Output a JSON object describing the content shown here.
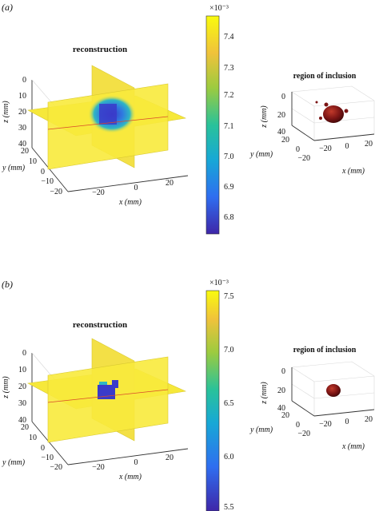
{
  "panels": [
    {
      "label": "(a)",
      "reconstruction": {
        "title": "reconstruction",
        "z_label": "z (mm)",
        "y_label": "y (mm)",
        "x_label": "x (mm)",
        "z_ticks": [
          "0",
          "10",
          "20",
          "30",
          "40"
        ],
        "y_ticks": [
          "20",
          "10",
          "0",
          "−10",
          "−20"
        ],
        "x_ticks": [
          "−20",
          "0",
          "20"
        ]
      },
      "colorbar": {
        "exponent": "×10⁻³",
        "ticks": [
          "7.4",
          "7.3",
          "7.2",
          "7.1",
          "7.0",
          "6.9",
          "6.8"
        ],
        "range": [
          6.75,
          7.45
        ]
      },
      "inclusion": {
        "title": "region of inclusion",
        "z_label": "z (mm)",
        "y_label": "y (mm)",
        "x_label": "x (mm)",
        "z_ticks": [
          "0",
          "20",
          "40"
        ],
        "y_ticks": [
          "20",
          "0",
          "−20"
        ],
        "x_ticks": [
          "−20",
          "0",
          "20"
        ]
      }
    },
    {
      "label": "(b)",
      "reconstruction": {
        "title": "reconstruction",
        "z_label": "z (mm)",
        "y_label": "y (mm)",
        "x_label": "x (mm)",
        "z_ticks": [
          "0",
          "10",
          "20",
          "30",
          "40"
        ],
        "y_ticks": [
          "20",
          "10",
          "0",
          "−10",
          "−20"
        ],
        "x_ticks": [
          "−20",
          "0",
          "20"
        ]
      },
      "colorbar": {
        "exponent": "×10⁻³",
        "ticks": [
          "7.5",
          "7.0",
          "6.5",
          "6.0",
          "5.5"
        ],
        "range": [
          5.5,
          7.55
        ]
      },
      "inclusion": {
        "title": "region of inclusion",
        "z_label": "z (mm)",
        "y_label": "y (mm)",
        "x_label": "x (mm)",
        "z_ticks": [
          "0",
          "20",
          "40"
        ],
        "y_ticks": [
          "20",
          "0",
          "−20"
        ],
        "x_ticks": [
          "−20",
          "0",
          "20"
        ]
      }
    }
  ],
  "colors": {
    "background_plane": "#f6e83a",
    "anomaly_core": "#3a3bc9",
    "anomaly_edge": "#2fb6c4",
    "inclusion_blob": "#7a1414",
    "colormap": [
      "#3e26a8",
      "#2f6ef0",
      "#17a8d6",
      "#29c29a",
      "#9ccb3f",
      "#f0c23b",
      "#f9fb0e"
    ]
  }
}
